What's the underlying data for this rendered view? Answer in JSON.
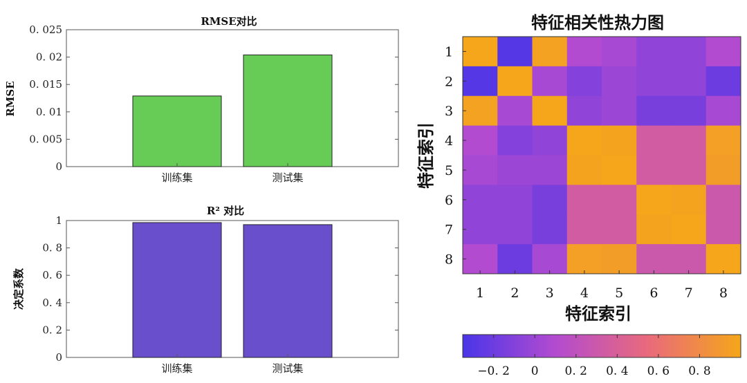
{
  "chart_data": [
    {
      "type": "bar",
      "title": "RMSE对比",
      "ylabel": "RMSE",
      "categories": [
        "训练集",
        "测试集"
      ],
      "values": [
        0.0129,
        0.0204
      ],
      "ylim": [
        0,
        0.025
      ],
      "yticks": [
        0,
        0.005,
        0.01,
        0.015,
        0.02,
        0.025
      ],
      "ytick_labels": [
        "0",
        "0. 005",
        "0. 01",
        "0. 015",
        "0. 02",
        "0. 025"
      ],
      "color": "#66cc55"
    },
    {
      "type": "bar",
      "title": "R² 对比",
      "ylabel": "决定系数",
      "categories": [
        "训练集",
        "测试集"
      ],
      "values": [
        0.985,
        0.97
      ],
      "ylim": [
        0,
        1
      ],
      "yticks": [
        0,
        0.2,
        0.4,
        0.6,
        0.8,
        1
      ],
      "ytick_labels": [
        "0",
        "0. 2",
        "0. 4",
        "0. 6",
        "0. 8",
        "1"
      ],
      "color": "#6a4fcc"
    },
    {
      "type": "heatmap",
      "title": "特征相关性热力图",
      "xlabel": "特征索引",
      "ylabel": "特征索引",
      "x": [
        "1",
        "2",
        "3",
        "4",
        "5",
        "6",
        "7",
        "8"
      ],
      "y": [
        "1",
        "2",
        "3",
        "4",
        "5",
        "6",
        "7",
        "8"
      ],
      "values": [
        [
          1.0,
          -0.3,
          0.97,
          0.1,
          0.05,
          -0.05,
          -0.05,
          0.1
        ],
        [
          -0.3,
          1.0,
          0.05,
          -0.1,
          0.0,
          -0.05,
          -0.05,
          -0.2
        ],
        [
          0.97,
          0.05,
          1.0,
          -0.05,
          0.0,
          -0.15,
          -0.15,
          0.05
        ],
        [
          0.1,
          -0.1,
          -0.05,
          1.0,
          0.98,
          0.35,
          0.35,
          0.95
        ],
        [
          0.05,
          0.0,
          0.0,
          0.98,
          1.0,
          0.35,
          0.35,
          0.93
        ],
        [
          -0.05,
          -0.05,
          -0.15,
          0.35,
          0.35,
          1.0,
          0.98,
          0.3
        ],
        [
          -0.05,
          -0.05,
          -0.15,
          0.35,
          0.35,
          0.98,
          1.0,
          0.3
        ],
        [
          0.1,
          -0.2,
          0.05,
          0.95,
          0.93,
          0.3,
          0.3,
          1.0
        ]
      ],
      "colorbar": {
        "range": [
          -0.35,
          1.0
        ],
        "ticks": [
          -0.2,
          0,
          0.2,
          0.4,
          0.6,
          0.8
        ],
        "tick_labels": [
          "−0. 2",
          "0",
          "0. 2",
          "0. 4",
          "0. 6",
          "0. 8"
        ],
        "colors": [
          "#4a35e8",
          "#b34bd0",
          "#e96a7c",
          "#f5a61a"
        ],
        "placement": "bottom"
      }
    }
  ]
}
